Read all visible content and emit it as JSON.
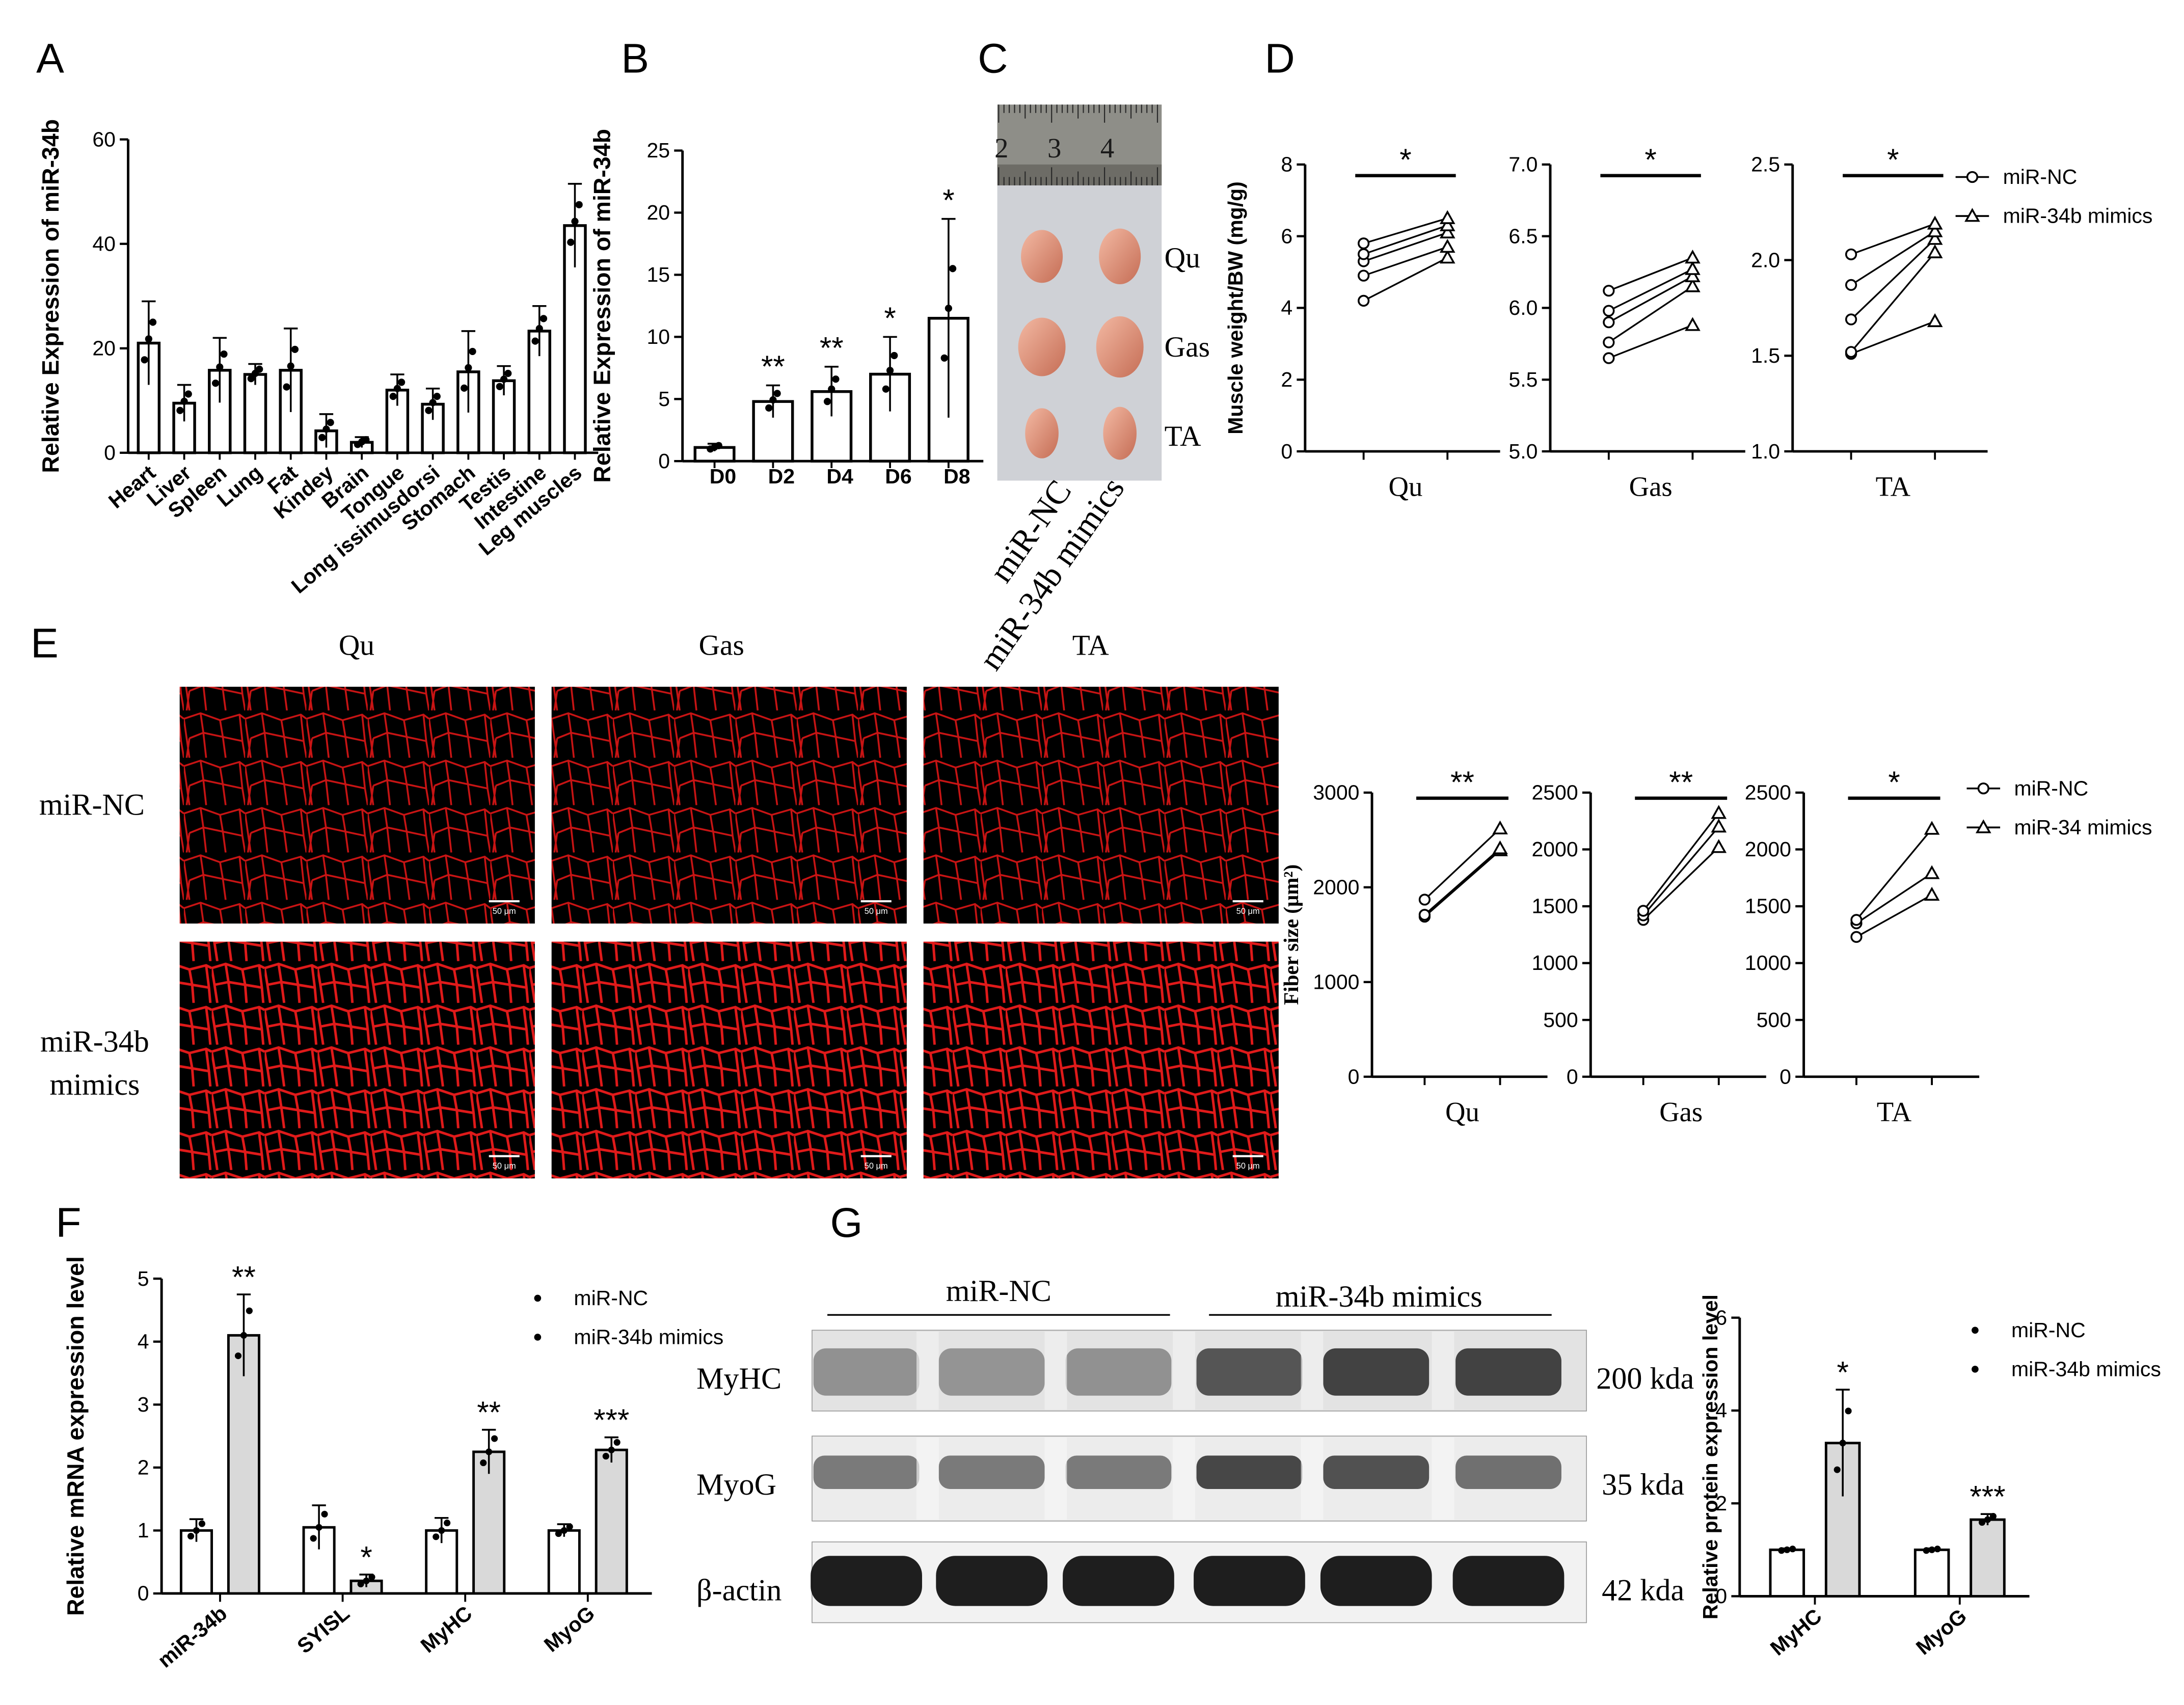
{
  "panel_letters": {
    "A": "A",
    "B": "B",
    "C": "C",
    "D": "D",
    "E": "E",
    "F": "F",
    "G": "G"
  },
  "chart_data": [
    {
      "id": "A",
      "type": "bar",
      "ylabel": "Relative Expression of miR-34b",
      "ylim": [
        0,
        60
      ],
      "yticks": [
        0,
        20,
        40,
        60
      ],
      "categories": [
        "Heart",
        "Liver",
        "Spleen",
        "Lung",
        "Fat",
        "Kindey",
        "Brain",
        "Tongue",
        "Long issimusdorsi",
        "Stomach",
        "Testis",
        "Intestine",
        "Leg muscles"
      ],
      "values": [
        21,
        9.5,
        15.8,
        15,
        15.8,
        4.2,
        2,
        12,
        9.3,
        15.5,
        13.8,
        23.3,
        43.5
      ],
      "errors": [
        8,
        3.5,
        6.2,
        2,
        8,
        3.2,
        1,
        3,
        3,
        7.8,
        2.8,
        4.8,
        8
      ]
    },
    {
      "id": "B",
      "type": "bar",
      "ylabel": "Relative Expression of miR-34b",
      "ylim": [
        0,
        25
      ],
      "yticks": [
        0,
        5,
        10,
        15,
        20,
        25
      ],
      "categories": [
        "D0",
        "D2",
        "D4",
        "D6",
        "D8"
      ],
      "values": [
        1.1,
        4.8,
        5.6,
        7.0,
        11.5
      ],
      "errors": [
        0.3,
        1.3,
        2.0,
        3.0,
        8.0
      ],
      "significance": [
        "",
        "**",
        "**",
        "*",
        "*"
      ]
    },
    {
      "id": "D",
      "type": "line",
      "ylabel": "Muscle weight/BW (mg/g)",
      "legend": [
        "miR-NC",
        "miR-34b mimics"
      ],
      "subplots": [
        {
          "name": "Qu",
          "ylim": [
            0,
            8
          ],
          "yticks": [
            "0",
            "2",
            "4",
            "6",
            "8"
          ],
          "sig": "*",
          "nc": [
            4.2,
            4.9,
            5.3,
            5.5,
            5.8
          ],
          "mimics": [
            5.4,
            5.7,
            6.1,
            6.3,
            6.5
          ]
        },
        {
          "name": "Gas",
          "ylim": [
            5.0,
            7.0
          ],
          "yticks": [
            "5.0",
            "5.5",
            "6.0",
            "6.5",
            "7.0"
          ],
          "sig": "*",
          "nc": [
            5.65,
            5.76,
            5.9,
            5.98,
            6.12
          ],
          "mimics": [
            5.88,
            6.15,
            6.22,
            6.27,
            6.35
          ]
        },
        {
          "name": "TA",
          "ylim": [
            1.0,
            2.5
          ],
          "yticks": [
            "1.0",
            "1.5",
            "2.0",
            "2.5"
          ],
          "sig": "*",
          "nc": [
            1.51,
            1.52,
            1.69,
            1.87,
            2.03
          ],
          "mimics": [
            1.68,
            2.04,
            2.11,
            2.15,
            2.19
          ]
        }
      ]
    },
    {
      "id": "E",
      "type": "line",
      "ylabel": "Fiber size (μm²)",
      "legend": [
        "miR-NC",
        "miR-34 mimics"
      ],
      "subplots": [
        {
          "name": "Qu",
          "ylim": [
            0,
            3000
          ],
          "yticks": [
            "0",
            "1000",
            "2000",
            "3000"
          ],
          "sig": "**",
          "nc": [
            1690,
            1710,
            1870
          ],
          "mimics": [
            2390,
            2410,
            2620
          ]
        },
        {
          "name": "Gas",
          "ylim": [
            0,
            2500
          ],
          "yticks": [
            "0",
            "500",
            "1000",
            "1500",
            "2000",
            "2500"
          ],
          "sig": "**",
          "nc": [
            1380,
            1420,
            1460
          ],
          "mimics": [
            2020,
            2200,
            2320
          ]
        },
        {
          "name": "TA",
          "ylim": [
            0,
            2500
          ],
          "yticks": [
            "0",
            "500",
            "1000",
            "1500",
            "2000",
            "2500"
          ],
          "sig": "*",
          "nc": [
            1230,
            1350,
            1380
          ],
          "mimics": [
            1600,
            1790,
            2180
          ]
        }
      ]
    },
    {
      "id": "F",
      "type": "bar",
      "ylabel": "Relative mRNA expression level",
      "legend": [
        "miR-NC",
        "miR-34b mimics"
      ],
      "ylim": [
        0,
        5
      ],
      "yticks": [
        0,
        1,
        2,
        3,
        4,
        5
      ],
      "categories": [
        "miR-34b",
        "SYISL",
        "MyHC",
        "MyoG"
      ],
      "series": [
        {
          "name": "miR-NC",
          "values": [
            1.0,
            1.05,
            1.0,
            1.0
          ],
          "errors": [
            0.18,
            0.35,
            0.2,
            0.1
          ]
        },
        {
          "name": "miR-34b mimics",
          "values": [
            4.1,
            0.2,
            2.25,
            2.28
          ],
          "errors": [
            0.65,
            0.1,
            0.35,
            0.2
          ]
        }
      ],
      "significance": [
        "**",
        "*",
        "**",
        "***"
      ]
    },
    {
      "id": "G",
      "type": "bar",
      "ylabel": "Relative protein expression level",
      "legend": [
        "miR-NC",
        "miR-34b mimics"
      ],
      "ylim": [
        0,
        6
      ],
      "yticks": [
        0,
        2,
        4,
        6
      ],
      "categories": [
        "MyHC",
        "MyoG"
      ],
      "series": [
        {
          "name": "miR-NC",
          "values": [
            1.0,
            1.0
          ],
          "errors": [
            0.03,
            0.03
          ]
        },
        {
          "name": "miR-34b mimics",
          "values": [
            3.3,
            1.65
          ],
          "errors": [
            1.15,
            0.12
          ]
        }
      ],
      "significance": [
        "*",
        "***"
      ]
    }
  ],
  "photo_C": {
    "ruler_numbers": [
      "2",
      "3",
      "4"
    ],
    "row_labels": [
      "Qu",
      "Gas",
      "TA"
    ],
    "column_labels": [
      "miR-NC",
      "miR-34b mimics"
    ]
  },
  "histology_E": {
    "column_labels": [
      "Qu",
      "Gas",
      "TA"
    ],
    "row_label_nc": "miR-NC",
    "row_label_mimics_1": "miR-34b",
    "row_label_mimics_2": "mimics",
    "scale_bar": "50 μm"
  },
  "blot_G": {
    "group_nc": "miR-NC",
    "group_mimics": "miR-34b mimics",
    "rows": [
      {
        "protein": "MyHC",
        "size": "200 kda"
      },
      {
        "protein": "MyoG",
        "size": "35 kda"
      },
      {
        "protein": "β-actin",
        "size": "42 kda"
      }
    ]
  }
}
